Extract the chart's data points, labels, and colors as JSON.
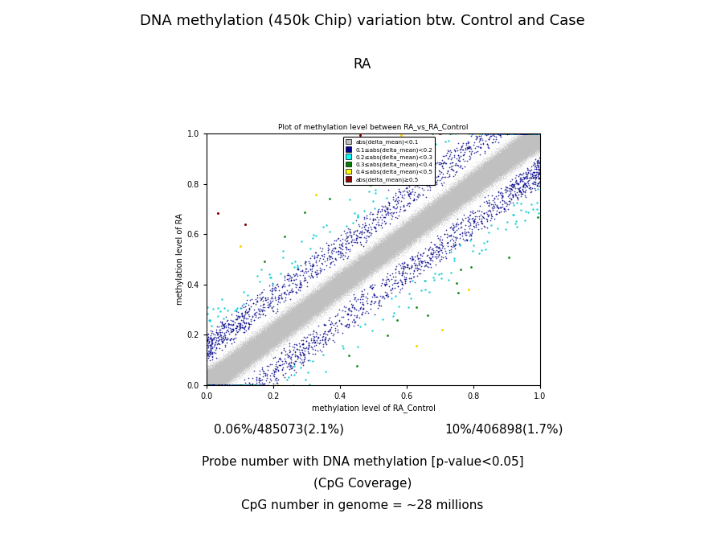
{
  "title": "DNA methylation (450k Chip) variation btw. Control and Case",
  "subtitle": "RA",
  "plot_title": "Plot of methylation level between RA_vs_RA_Control",
  "xlabel": "methylation level of RA_Control",
  "ylabel": "methylation level of RA",
  "xlim": [
    0.0,
    1.0
  ],
  "ylim": [
    0.0,
    1.0
  ],
  "xticks": [
    0.0,
    0.2,
    0.4,
    0.6,
    0.8,
    1.0
  ],
  "yticks": [
    0.0,
    0.2,
    0.4,
    0.6,
    0.8,
    1.0
  ],
  "legend_labels": [
    "abs(delta_mean)<0.1",
    "0.1≤abs(delta_mean)<0.2",
    "0.2≤abs(delta_mean)<0.3",
    "0.3≤abs(delta_mean)<0.4",
    "0.4≤abs(delta_mean)<0.5",
    "abs(delta_mean)≥0.5"
  ],
  "legend_colors": [
    "#C0C0C0",
    "#00008B",
    "#00FFFF",
    "#008000",
    "#FFFF00",
    "#8B0000"
  ],
  "scatter_colors": [
    "#C0C0C0",
    "#00008B",
    "#00CED1",
    "#008000",
    "#FFD700",
    "#8B0000"
  ],
  "n_gray": 400000,
  "n_blue": 3000,
  "n_cyan": 200,
  "n_green": 30,
  "n_yellow": 10,
  "n_red": 5,
  "text_left": "0.06%/485073(2.1%)",
  "text_right": "10%/406898(1.7%)",
  "bottom_text1": "Probe number with DNA methylation [p-value<0.05]",
  "bottom_text2": "(CpG Coverage)",
  "bottom_text3": "CpG number in genome = ~28 millions",
  "bg_color": "#FFFFFF",
  "plot_bg_color": "#FFFFFF",
  "seed": 42
}
